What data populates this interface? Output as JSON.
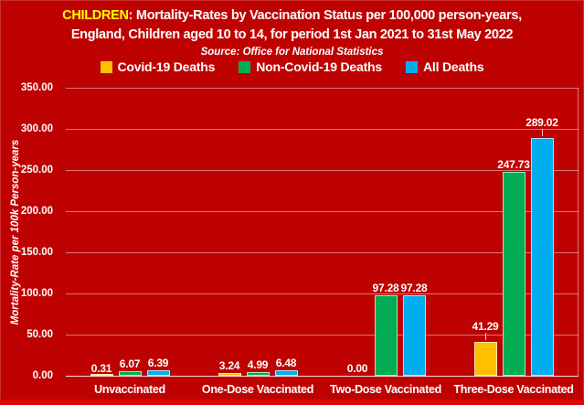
{
  "colors": {
    "background": "#BE0202",
    "title_highlight": "#FFFF00",
    "text": "#FFFFFF",
    "bottom_edge": "#E00505"
  },
  "header": {
    "title_highlight": "CHILDREN",
    "title_line1_rest": ": Mortality-Rates by Vaccination Status per 100,000 person-years,",
    "title_line2": "England, Children aged 10 to 14, for period 1st Jan 2021 to 31st May 2022",
    "source_line": "Source: Office for National Statistics"
  },
  "chart_data": {
    "type": "bar",
    "title": "CHILDREN: Mortality-Rates by Vaccination Status per 100,000 person-years, England, Children aged 10 to 14, for period 1st Jan 2021 to 31st May 2022",
    "subtitle": "Source: Office for National Statistics",
    "categories": [
      "Unvaccinated",
      "One-Dose Vaccinated",
      "Two-Dose Vaccinated",
      "Three-Dose Vaccinated"
    ],
    "series": [
      {
        "name": "Covid-19 Deaths",
        "color": "#FFC000",
        "values": [
          0.31,
          3.24,
          0.0,
          41.29
        ]
      },
      {
        "name": "Non-Covid-19 Deaths",
        "color": "#00AD52",
        "values": [
          6.07,
          4.99,
          97.28,
          247.73
        ]
      },
      {
        "name": "All Deaths",
        "color": "#00AEF0",
        "values": [
          6.39,
          6.48,
          97.28,
          289.02
        ]
      }
    ],
    "xlabel": "",
    "ylabel": "Mortality-Rate per 100k Person-years",
    "ylim": [
      0,
      350
    ],
    "ytick_step": 50,
    "ytick_labels": [
      "0.00",
      "50.00",
      "100.00",
      "150.00",
      "200.00",
      "250.00",
      "300.00",
      "350.00"
    ],
    "grid": true,
    "legend_position": "top",
    "label_decimals": 2,
    "callout_labels": [
      {
        "series": 0,
        "category": 3
      },
      {
        "series": 2,
        "category": 3
      }
    ]
  }
}
